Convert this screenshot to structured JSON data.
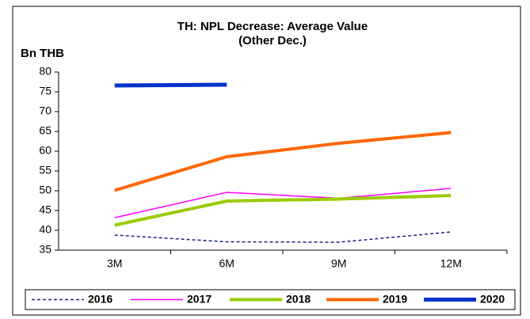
{
  "chart_data": {
    "type": "line",
    "title": "TH: NPL Decrease: Average Value",
    "subtitle": "(Other Dec.)",
    "y_label": "Bn THB",
    "categories": [
      "3M",
      "6M",
      "9M",
      "12M"
    ],
    "series": [
      {
        "name": "2016",
        "color": "#1a237e",
        "dash": true,
        "width": 1.5,
        "values": [
          38.8,
          37.1,
          37.0,
          39.6
        ]
      },
      {
        "name": "2017",
        "color": "#ff00ff",
        "width": 1.5,
        "values": [
          43.2,
          49.6,
          48.1,
          50.6
        ]
      },
      {
        "name": "2018",
        "color": "#99cc00",
        "width": 4,
        "values": [
          41.3,
          47.4,
          47.9,
          48.8
        ]
      },
      {
        "name": "2019",
        "color": "#ff6600",
        "width": 4,
        "values": [
          50.1,
          58.6,
          62.0,
          64.7
        ]
      },
      {
        "name": "2020",
        "color": "#0033cc",
        "width": 5,
        "values": [
          76.6,
          76.8,
          null,
          null
        ]
      }
    ],
    "ylim": [
      35,
      80
    ],
    "yticks": [
      35,
      40,
      45,
      50,
      55,
      60,
      65,
      70,
      75,
      80
    ]
  }
}
